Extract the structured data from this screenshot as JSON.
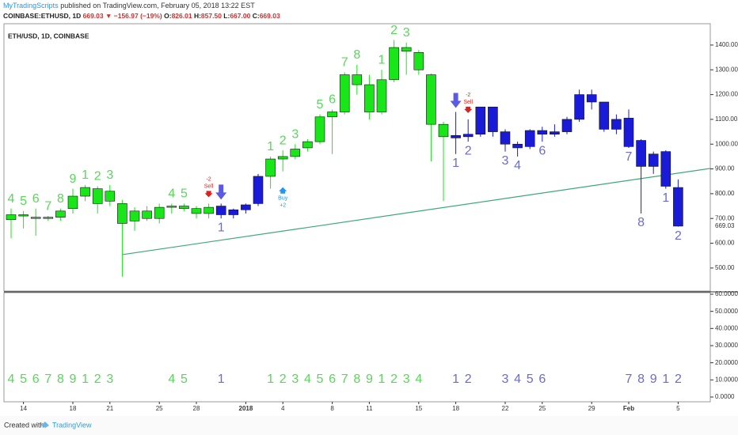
{
  "header": {
    "author": "MyTradingScripts",
    "published": "published on TradingView.com, February 05, 2018 13:22 EST",
    "symbol": "COINBASE:ETHUSD, 1D",
    "last": "669.03",
    "change": "▼ −156.97 (−19%)",
    "ohlc": [
      {
        "label": "O:",
        "value": "826.01"
      },
      {
        "label": "H:",
        "value": "857.50"
      },
      {
        "label": "L:",
        "value": "667.00"
      },
      {
        "label": "C:",
        "value": "669.03"
      }
    ]
  },
  "footer": {
    "created": "Created with",
    "brand": "TradingView"
  },
  "chart_data": {
    "type": "candlestick",
    "title": "ETH/USD, 1D, COINBASE",
    "categories": [
      null,
      "14",
      null,
      null,
      null,
      "18",
      null,
      null,
      "21",
      null,
      null,
      null,
      "25",
      null,
      null,
      "28",
      null,
      null,
      null,
      "2018",
      null,
      null,
      "4",
      null,
      null,
      null,
      "8",
      null,
      null,
      "11",
      null,
      null,
      null,
      "15",
      null,
      null,
      "18",
      null,
      null,
      null,
      "22",
      null,
      null,
      "25",
      null,
      null,
      null,
      "29",
      null,
      null,
      "Feb",
      null,
      null,
      null,
      "5"
    ],
    "open": [
      695,
      715,
      705,
      700,
      705,
      740,
      790,
      820,
      770,
      760,
      690,
      730,
      700,
      745,
      750,
      740,
      720,
      750,
      715,
      735,
      760,
      870,
      940,
      950,
      985,
      1010,
      1110,
      1130,
      1280,
      1240,
      1130,
      1260,
      1390,
      1370,
      1280,
      1080,
      1035,
      1030,
      1040,
      1150,
      1050,
      1000,
      990,
      1055,
      1040,
      1050,
      1100,
      1200,
      1170,
      1060,
      1105,
      1015,
      960,
      970,
      825
    ],
    "high": [
      740,
      730,
      740,
      710,
      740,
      820,
      835,
      830,
      835,
      775,
      745,
      750,
      760,
      760,
      760,
      750,
      760,
      760,
      740,
      760,
      880,
      950,
      975,
      1000,
      1020,
      1120,
      1140,
      1290,
      1320,
      1280,
      1300,
      1420,
      1410,
      1380,
      1285,
      1090,
      1130,
      1100,
      1150,
      1150,
      1060,
      1010,
      1060,
      1070,
      1080,
      1110,
      1220,
      1220,
      1170,
      1120,
      1140,
      1020,
      970,
      975,
      857.5
    ],
    "low": [
      620,
      660,
      630,
      690,
      690,
      720,
      770,
      720,
      750,
      465,
      650,
      690,
      680,
      720,
      730,
      700,
      700,
      700,
      700,
      720,
      750,
      820,
      890,
      940,
      970,
      1000,
      960,
      1120,
      1200,
      1100,
      1120,
      1250,
      1280,
      1280,
      930,
      770,
      960,
      1010,
      1030,
      1030,
      970,
      950,
      980,
      1010,
      1030,
      1040,
      1090,
      1140,
      1050,
      1040,
      985,
      720,
      880,
      820,
      667
    ],
    "close": [
      715,
      710,
      700,
      705,
      730,
      790,
      825,
      760,
      810,
      680,
      730,
      700,
      745,
      750,
      740,
      720,
      745,
      715,
      735,
      755,
      870,
      940,
      950,
      980,
      1010,
      1110,
      1130,
      1280,
      1240,
      1130,
      1260,
      1390,
      1375,
      1300,
      1080,
      1030,
      1025,
      1040,
      1150,
      1050,
      1000,
      985,
      1055,
      1040,
      1050,
      1100,
      1200,
      1170,
      1060,
      1100,
      990,
      910,
      910,
      830,
      669.03
    ],
    "colors": [
      "#19e619",
      "#19e619",
      "#19e619",
      "#19e619",
      "#19e619",
      "#19e619",
      "#19e619",
      "#19e619",
      "#19e619",
      "#19e619",
      "#19e619",
      "#19e619",
      "#19e619",
      "#19e619",
      "#19e619",
      "#19e619",
      "#19e619",
      "#1a1ad9",
      "#1a1ad9",
      "#1a1ad9",
      "#1a1ad9",
      "#19e619",
      "#19e619",
      "#19e619",
      "#19e619",
      "#19e619",
      "#19e619",
      "#19e619",
      "#19e619",
      "#19e619",
      "#19e619",
      "#19e619",
      "#19e619",
      "#19e619",
      "#19e619",
      "#19e619",
      "#1a1ad9",
      "#1a1ad9",
      "#1a1ad9",
      "#1a1ad9",
      "#1a1ad9",
      "#1a1ad9",
      "#1a1ad9",
      "#1a1ad9",
      "#1a1ad9",
      "#1a1ad9",
      "#1a1ad9",
      "#1a1ad9",
      "#1a1ad9",
      "#1a1ad9",
      "#1a1ad9",
      "#1a1ad9",
      "#1a1ad9",
      "#1a1ad9",
      "#1a1ad9"
    ],
    "counts_above": {
      "color": "#5ad65a",
      "items": [
        {
          "index": 0,
          "label": "4"
        },
        {
          "index": 1,
          "label": "5"
        },
        {
          "index": 2,
          "label": "6"
        },
        {
          "index": 3,
          "label": "7"
        },
        {
          "index": 4,
          "label": "8"
        },
        {
          "index": 5,
          "label": "9"
        },
        {
          "index": 6,
          "label": "1"
        },
        {
          "index": 7,
          "label": "2"
        },
        {
          "index": 8,
          "label": "3"
        },
        {
          "index": 13,
          "label": "4"
        },
        {
          "index": 14,
          "label": "5"
        },
        {
          "index": 21,
          "label": "1"
        },
        {
          "index": 22,
          "label": "2"
        },
        {
          "index": 23,
          "label": "3"
        },
        {
          "index": 25,
          "label": "5"
        },
        {
          "index": 26,
          "label": "6"
        },
        {
          "index": 27,
          "label": "7"
        },
        {
          "index": 28,
          "label": "8"
        },
        {
          "index": 30,
          "label": "1"
        },
        {
          "index": 31,
          "label": "2"
        },
        {
          "index": 32,
          "label": "3"
        }
      ]
    },
    "counts_below": {
      "color": "#6b6bd6",
      "items": [
        {
          "index": 17,
          "label": "1"
        },
        {
          "index": 36,
          "label": "1"
        },
        {
          "index": 37,
          "label": "2"
        },
        {
          "index": 40,
          "label": "3"
        },
        {
          "index": 41,
          "label": "4"
        },
        {
          "index": 43,
          "label": "6"
        },
        {
          "index": 50,
          "label": "7"
        },
        {
          "index": 51,
          "label": "8"
        },
        {
          "index": 53,
          "label": "1"
        },
        {
          "index": 54,
          "label": "2"
        }
      ]
    },
    "sells": [
      {
        "index": 16,
        "value": "-2",
        "label": "Sell"
      },
      {
        "index": 37,
        "value": "-2",
        "label": "Sell"
      }
    ],
    "buys": [
      {
        "index": 22,
        "value": "+2",
        "label": "Buy"
      }
    ],
    "arrows": [
      17,
      36
    ],
    "trendline": {
      "x": [
        9,
        56.6
      ],
      "y": [
        554,
        902
      ],
      "color": "#3aa87a"
    },
    "ylim": [
      407,
      1486
    ],
    "yticks": [
      {
        "value": 500,
        "label": "500.00"
      },
      {
        "value": 600,
        "label": "600.00"
      },
      {
        "value": 700,
        "label": "700.00"
      },
      {
        "value": 800,
        "label": "800.00"
      },
      {
        "value": 900,
        "label": "900.00"
      },
      {
        "value": 1000,
        "label": "1000.00"
      },
      {
        "value": 1100,
        "label": "1100.00"
      },
      {
        "value": 1200,
        "label": "1200.00"
      },
      {
        "value": 1300,
        "label": "1300.00"
      },
      {
        "value": 1400,
        "label": "1400.00"
      }
    ],
    "last_price": {
      "value": 669.03,
      "label": "669.03"
    },
    "indicator": {
      "ylim": [
        -2.77,
        60.92
      ],
      "yticks": [
        {
          "value": 0,
          "label": "0.0000"
        },
        {
          "value": 10,
          "label": "10.0000"
        },
        {
          "value": 20,
          "label": "20.0000"
        },
        {
          "value": 30,
          "label": "30.0000"
        },
        {
          "value": 40,
          "label": "40.0000"
        },
        {
          "value": 50,
          "label": "50.0000"
        },
        {
          "value": 60,
          "label": "60.0000"
        }
      ],
      "counts": [
        {
          "index": 0,
          "label": "4"
        },
        {
          "index": 1,
          "label": "5"
        },
        {
          "index": 2,
          "label": "6"
        },
        {
          "index": 3,
          "label": "7"
        },
        {
          "index": 4,
          "label": "8"
        },
        {
          "index": 5,
          "label": "9"
        },
        {
          "index": 6,
          "label": "1"
        },
        {
          "index": 7,
          "label": "2"
        },
        {
          "index": 8,
          "label": "3"
        },
        {
          "index": 13,
          "label": "4"
        },
        {
          "index": 14,
          "label": "5"
        },
        {
          "index": 17,
          "label": "1"
        },
        {
          "index": 21,
          "label": "1"
        },
        {
          "index": 22,
          "label": "2"
        },
        {
          "index": 23,
          "label": "3"
        },
        {
          "index": 24,
          "label": "4"
        },
        {
          "index": 25,
          "label": "5"
        },
        {
          "index": 26,
          "label": "6"
        },
        {
          "index": 27,
          "label": "7"
        },
        {
          "index": 28,
          "label": "8"
        },
        {
          "index": 29,
          "label": "9"
        },
        {
          "index": 30,
          "label": "1"
        },
        {
          "index": 31,
          "label": "2"
        },
        {
          "index": 32,
          "label": "3"
        },
        {
          "index": 33,
          "label": "4"
        },
        {
          "index": 36,
          "label": "1"
        },
        {
          "index": 37,
          "label": "2"
        },
        {
          "index": 40,
          "label": "3"
        },
        {
          "index": 41,
          "label": "4"
        },
        {
          "index": 42,
          "label": "5"
        },
        {
          "index": 43,
          "label": "6"
        },
        {
          "index": 50,
          "label": "7"
        },
        {
          "index": 51,
          "label": "8"
        },
        {
          "index": 52,
          "label": "9"
        },
        {
          "index": 53,
          "label": "1"
        },
        {
          "index": 54,
          "label": "2"
        }
      ]
    }
  }
}
